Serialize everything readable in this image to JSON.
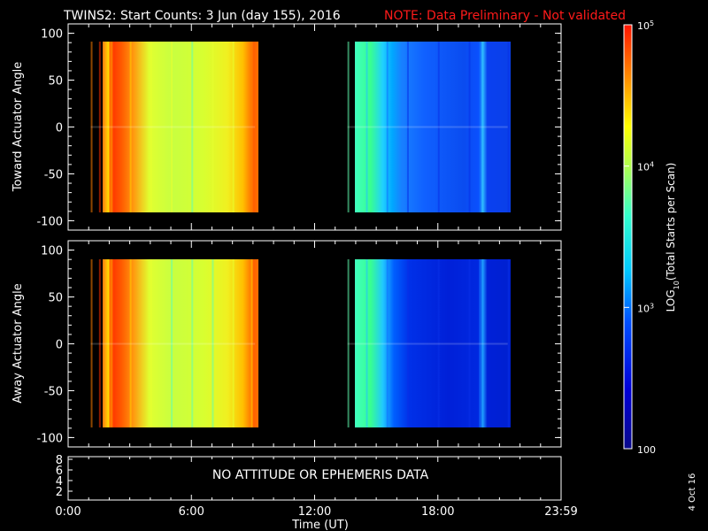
{
  "header": {
    "title": "TWINS2: Start Counts:  3 Jun (day 155), 2016",
    "note": "NOTE: Data Preliminary - Not validated",
    "note_color": "#ff1a1a"
  },
  "colorbar": {
    "label": "LOG10(Total Starts per Scan)",
    "label_main": "LOG",
    "label_sub": "10",
    "label_rest": "(Total Starts per Scan)",
    "scale": "log",
    "range": [
      100,
      100000
    ],
    "ticks": [
      {
        "value": 100000,
        "base": "10",
        "exp": "5"
      },
      {
        "value": 10000,
        "base": "10",
        "exp": "4"
      },
      {
        "value": 1000,
        "base": "10",
        "exp": "3"
      },
      {
        "value": 100,
        "base": "100",
        "exp": ""
      }
    ]
  },
  "footer": {
    "xlabel": "Time (UT)",
    "x_ticks": [
      "0:00",
      "6:00",
      "12:00",
      "18:00",
      "23:59"
    ],
    "date_stamp": "4 Oct 16"
  },
  "ephemeris_panel": {
    "message": "NO ATTITUDE OR EPHEMERIS DATA",
    "y_ticks": [
      "8",
      "6",
      "4",
      "2"
    ]
  },
  "chart_data": [
    {
      "type": "heatmap",
      "name": "toward",
      "ylabel": "Toward Actuator Angle",
      "xlim": [
        0,
        24
      ],
      "ylim": [
        -110,
        110
      ],
      "y_ticks": [
        "100",
        "50",
        "0",
        "-50",
        "-100"
      ],
      "y_tick_values": [
        100,
        50,
        0,
        -50,
        -100
      ],
      "data_y_range": [
        -90,
        90
      ],
      "data_intervals_hours": [
        [
          1.1,
          9.1
        ],
        [
          13.6,
          21.4
        ]
      ],
      "log10_counts_by_hour": {
        "hours": [
          1.1,
          1.5,
          2.0,
          3.0,
          4.0,
          5.0,
          6.0,
          7.0,
          8.0,
          8.9,
          13.6,
          14.5,
          15.5,
          16.5,
          18.0,
          19.5,
          20.0,
          21.4
        ],
        "values": [
          4.5,
          4.7,
          4.6,
          4.2,
          3.9,
          3.85,
          3.8,
          3.85,
          3.9,
          4.4,
          3.5,
          3.3,
          2.9,
          2.6,
          2.5,
          2.5,
          3.0,
          2.5
        ]
      }
    },
    {
      "type": "heatmap",
      "name": "away",
      "ylabel": "Away Actuator Angle",
      "xlim": [
        0,
        24
      ],
      "ylim": [
        -110,
        110
      ],
      "y_ticks": [
        "100",
        "50",
        "0",
        "-50",
        "-100"
      ],
      "y_tick_values": [
        100,
        50,
        0,
        -50,
        -100
      ],
      "data_y_range": [
        -90,
        90
      ],
      "data_intervals_hours": [
        [
          1.1,
          9.1
        ],
        [
          13.6,
          21.4
        ]
      ],
      "log10_counts_by_hour": {
        "hours": [
          1.1,
          1.5,
          2.0,
          3.0,
          4.0,
          5.0,
          6.0,
          7.0,
          8.0,
          8.9,
          13.6,
          14.5,
          15.5,
          16.5,
          18.0,
          19.5,
          20.0,
          21.4
        ],
        "values": [
          4.5,
          4.7,
          4.6,
          4.1,
          3.85,
          3.8,
          3.75,
          3.8,
          3.85,
          4.3,
          3.45,
          3.2,
          2.7,
          2.4,
          2.3,
          2.3,
          2.9,
          2.3
        ]
      }
    }
  ]
}
